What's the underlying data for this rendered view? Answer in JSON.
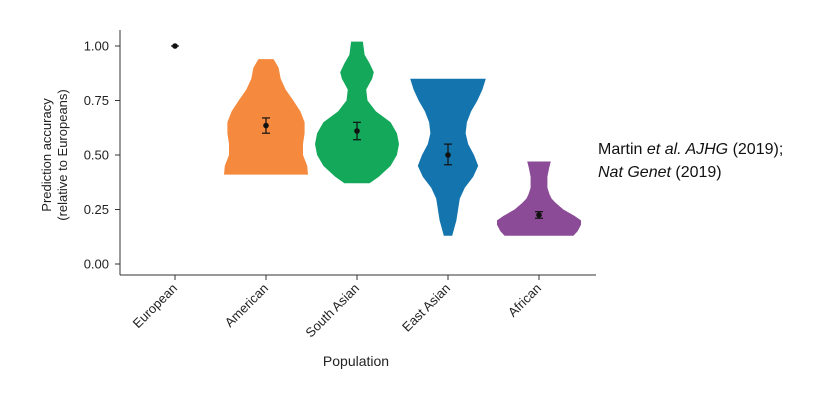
{
  "chart_data": {
    "type": "violin",
    "xlabel": "Population",
    "ylabel_lines": [
      "Prediction accuracy",
      "(relative to Europeans)"
    ],
    "ylim": [
      0,
      1.05
    ],
    "yticks": [
      0.0,
      0.25,
      0.5,
      0.75,
      1.0
    ],
    "ytick_labels": [
      "0.00",
      "0.25",
      "0.50",
      "0.75",
      "1.00"
    ],
    "categories": [
      "European",
      "American",
      "South Asian",
      "East Asian",
      "African"
    ],
    "series": [
      {
        "name": "European",
        "color": "#111111",
        "mean": 1.0,
        "ci": [
          1.0,
          1.0
        ],
        "min": 1.0,
        "max": 1.0,
        "density": []
      },
      {
        "name": "American",
        "color": "#F58A3E",
        "mean": 0.635,
        "ci": [
          0.6,
          0.67
        ],
        "min": 0.41,
        "max": 0.94,
        "density": [
          [
            0.41,
            1.0
          ],
          [
            0.45,
            0.98
          ],
          [
            0.5,
            0.88
          ],
          [
            0.55,
            0.88
          ],
          [
            0.6,
            0.92
          ],
          [
            0.65,
            0.92
          ],
          [
            0.7,
            0.82
          ],
          [
            0.75,
            0.65
          ],
          [
            0.8,
            0.47
          ],
          [
            0.85,
            0.35
          ],
          [
            0.9,
            0.3
          ],
          [
            0.94,
            0.18
          ]
        ]
      },
      {
        "name": "South Asian",
        "color": "#14A85A",
        "mean": 0.61,
        "ci": [
          0.57,
          0.65
        ],
        "min": 0.37,
        "max": 1.02,
        "density": [
          [
            0.37,
            0.3
          ],
          [
            0.4,
            0.52
          ],
          [
            0.45,
            0.8
          ],
          [
            0.5,
            0.95
          ],
          [
            0.55,
            1.0
          ],
          [
            0.6,
            0.95
          ],
          [
            0.65,
            0.8
          ],
          [
            0.7,
            0.45
          ],
          [
            0.75,
            0.25
          ],
          [
            0.8,
            0.22
          ],
          [
            0.85,
            0.36
          ],
          [
            0.88,
            0.4
          ],
          [
            0.92,
            0.3
          ],
          [
            0.96,
            0.18
          ],
          [
            1.02,
            0.14
          ]
        ]
      },
      {
        "name": "East Asian",
        "color": "#1374AE",
        "mean": 0.5,
        "ci": [
          0.455,
          0.55
        ],
        "min": 0.13,
        "max": 0.85,
        "density": [
          [
            0.13,
            0.1
          ],
          [
            0.2,
            0.2
          ],
          [
            0.3,
            0.28
          ],
          [
            0.35,
            0.4
          ],
          [
            0.4,
            0.6
          ],
          [
            0.45,
            0.72
          ],
          [
            0.5,
            0.62
          ],
          [
            0.55,
            0.48
          ],
          [
            0.6,
            0.42
          ],
          [
            0.65,
            0.45
          ],
          [
            0.7,
            0.55
          ],
          [
            0.75,
            0.7
          ],
          [
            0.8,
            0.82
          ],
          [
            0.85,
            0.9
          ]
        ]
      },
      {
        "name": "African",
        "color": "#8B4B97",
        "mean": 0.225,
        "ci": [
          0.21,
          0.24
        ],
        "min": 0.13,
        "max": 0.47,
        "density": [
          [
            0.13,
            0.82
          ],
          [
            0.15,
            0.92
          ],
          [
            0.18,
            1.0
          ],
          [
            0.2,
            1.0
          ],
          [
            0.22,
            0.85
          ],
          [
            0.25,
            0.58
          ],
          [
            0.28,
            0.4
          ],
          [
            0.3,
            0.3
          ],
          [
            0.32,
            0.25
          ],
          [
            0.35,
            0.2
          ],
          [
            0.4,
            0.2
          ],
          [
            0.44,
            0.24
          ],
          [
            0.47,
            0.28
          ]
        ]
      }
    ]
  },
  "citation": {
    "line1_prefix": "Martin ",
    "line1_italic": "et al. AJHG",
    "line1_suffix": " (2019);",
    "line2_italic": "Nat Genet",
    "line2_suffix": " (2019)"
  }
}
